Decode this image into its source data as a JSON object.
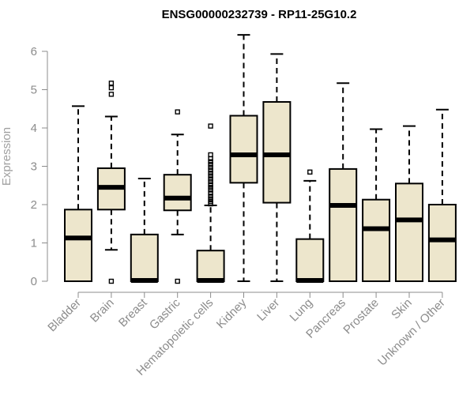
{
  "chart_data": {
    "type": "box",
    "title": "ENSG00000232739 - RP11-25G10.2",
    "xlabel": "",
    "ylabel": "Expression",
    "ylim": [
      0,
      6.8
    ],
    "yticks": [
      0,
      1,
      2,
      3,
      4,
      5,
      6
    ],
    "grid": false,
    "colors": {
      "box_fill": "#ede6cc",
      "stroke": "#000000",
      "axis_text": "#8c8c8c"
    },
    "categories": [
      "Bladder",
      "Brain",
      "Breast",
      "Gastric",
      "Hematopoietic cells",
      "Kidney",
      "Liver",
      "Lung",
      "Pancreas",
      "Prostate",
      "Skin",
      "Unknown / Other"
    ],
    "boxes": [
      {
        "category": "Bladder",
        "min": 0,
        "q1": 0,
        "median": 1.13,
        "q3": 1.87,
        "max": 4.57,
        "outliers": []
      },
      {
        "category": "Brain",
        "min": 0.82,
        "q1": 1.87,
        "median": 2.45,
        "q3": 2.95,
        "max": 4.3,
        "outliers": [
          0,
          4.88,
          5.05,
          5.17
        ]
      },
      {
        "category": "Breast",
        "min": 0,
        "q1": 0,
        "median": 0.02,
        "q3": 1.22,
        "max": 2.68,
        "outliers": []
      },
      {
        "category": "Gastric",
        "min": 1.22,
        "q1": 1.85,
        "median": 2.17,
        "q3": 2.78,
        "max": 3.83,
        "outliers": [
          0,
          4.42
        ]
      },
      {
        "category": "Hematopoietic cells",
        "min": 0,
        "q1": 0,
        "median": 0.02,
        "q3": 0.8,
        "max": 1.98,
        "outliers": [
          2.02,
          2.08,
          2.15,
          2.22,
          2.3,
          2.38,
          2.45,
          2.52,
          2.6,
          2.67,
          2.75,
          2.82,
          2.9,
          2.97,
          3.05,
          3.12,
          3.2,
          3.3,
          4.05
        ]
      },
      {
        "category": "Kidney",
        "min": 0,
        "q1": 2.57,
        "median": 3.3,
        "q3": 4.32,
        "max": 6.43,
        "outliers": []
      },
      {
        "category": "Liver",
        "min": 0,
        "q1": 2.05,
        "median": 3.3,
        "q3": 4.68,
        "max": 5.93,
        "outliers": []
      },
      {
        "category": "Lung",
        "min": 0,
        "q1": 0,
        "median": 0.02,
        "q3": 1.1,
        "max": 2.62,
        "outliers": [
          2.85
        ]
      },
      {
        "category": "Pancreas",
        "min": 0,
        "q1": 0,
        "median": 1.98,
        "q3": 2.93,
        "max": 5.17,
        "outliers": []
      },
      {
        "category": "Prostate",
        "min": 0,
        "q1": 0,
        "median": 1.37,
        "q3": 2.13,
        "max": 3.97,
        "outliers": []
      },
      {
        "category": "Skin",
        "min": 0,
        "q1": 0,
        "median": 1.6,
        "q3": 2.55,
        "max": 4.05,
        "outliers": []
      },
      {
        "category": "Unknown / Other",
        "min": 0,
        "q1": 0,
        "median": 1.08,
        "q3": 2.0,
        "max": 4.48,
        "outliers": []
      }
    ]
  }
}
